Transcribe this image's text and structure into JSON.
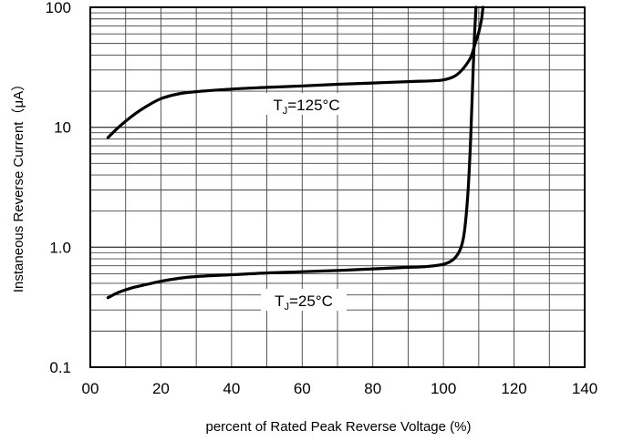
{
  "chart_data": {
    "type": "line",
    "xlabel": "percent of Rated  Peak Reverse Voltage (%)",
    "ylabel": "Instaneous  Reverse  Current（μA）",
    "x_ticks": [
      0,
      20,
      40,
      60,
      80,
      100,
      120,
      140
    ],
    "x_tick_labels": [
      "00",
      "20",
      "40",
      "60",
      "80",
      "100",
      "120",
      "140"
    ],
    "y_ticks": [
      0.1,
      1,
      10,
      100
    ],
    "y_tick_labels": [
      "0.1",
      "1.0",
      "10",
      "100"
    ],
    "xlim": [
      0,
      140
    ],
    "ylim": [
      0.1,
      100
    ],
    "y_scale": "log",
    "x_minor_step": 10,
    "grid": true,
    "legend": "none",
    "line_color": "#000000",
    "series": [
      {
        "label_main": "T",
        "label_sub": "J",
        "label_rest": "=125°C",
        "points": [
          [
            5,
            8.2
          ],
          [
            8,
            10
          ],
          [
            12,
            12.5
          ],
          [
            16,
            15
          ],
          [
            20,
            17.3
          ],
          [
            25,
            19
          ],
          [
            30,
            19.8
          ],
          [
            40,
            20.8
          ],
          [
            50,
            21.5
          ],
          [
            60,
            22.1
          ],
          [
            70,
            22.8
          ],
          [
            80,
            23.4
          ],
          [
            90,
            24
          ],
          [
            97,
            24.4
          ],
          [
            100,
            24.8
          ],
          [
            103,
            26.5
          ],
          [
            105,
            29.5
          ],
          [
            107,
            35
          ],
          [
            108,
            40
          ],
          [
            109,
            50
          ],
          [
            110,
            62
          ],
          [
            110.8,
            80
          ],
          [
            111.2,
            100
          ]
        ]
      },
      {
        "label_main": "T",
        "label_sub": "J",
        "label_rest": "=25°C",
        "points": [
          [
            5,
            0.38
          ],
          [
            8,
            0.42
          ],
          [
            12,
            0.46
          ],
          [
            16,
            0.49
          ],
          [
            20,
            0.52
          ],
          [
            25,
            0.55
          ],
          [
            30,
            0.57
          ],
          [
            40,
            0.59
          ],
          [
            50,
            0.61
          ],
          [
            60,
            0.625
          ],
          [
            70,
            0.64
          ],
          [
            80,
            0.66
          ],
          [
            90,
            0.68
          ],
          [
            95,
            0.69
          ],
          [
            100,
            0.72
          ],
          [
            103,
            0.8
          ],
          [
            105,
            1.0
          ],
          [
            106,
            1.4
          ],
          [
            107,
            3
          ],
          [
            107.7,
            8
          ],
          [
            108.2,
            20
          ],
          [
            108.7,
            50
          ],
          [
            109.2,
            100
          ]
        ]
      }
    ]
  }
}
